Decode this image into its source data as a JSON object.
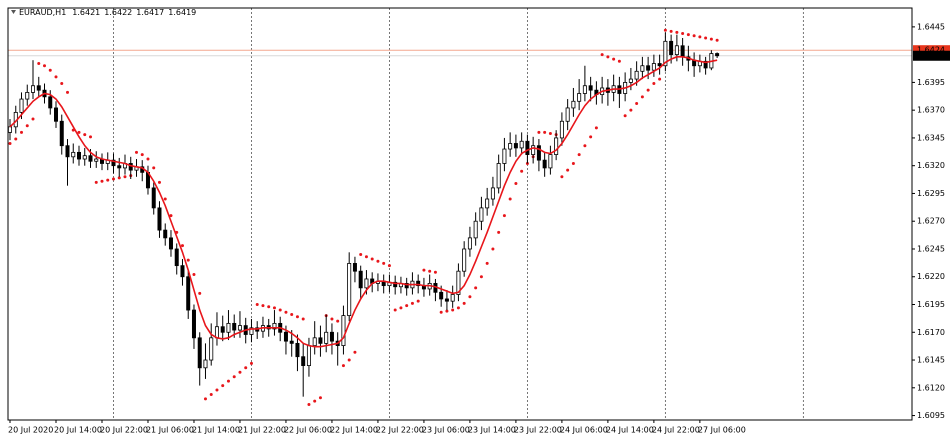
{
  "chart_data": {
    "type": "candlestick",
    "title": "EURAUD,H1",
    "xlim": [
      -0.35,
      156.9
    ],
    "ylim": [
      1.6091,
      1.6462
    ],
    "yticks": [
      1.6445,
      1.6395,
      {
        "value": 1.637,
        "label": "1.6370"
      },
      1.6345,
      {
        "value": 1.632,
        "label": "1.6320"
      },
      1.6295,
      {
        "value": 1.627,
        "label": "1.6270"
      },
      1.6245,
      {
        "value": 1.622,
        "label": "1.6220"
      },
      1.6195,
      {
        "value": 1.617,
        "label": "1.6170"
      },
      1.6145,
      {
        "value": 1.612,
        "label": "1.6120"
      },
      1.6095
    ],
    "xticks": [
      {
        "value": 0,
        "label": "20 Jul 2020"
      },
      {
        "value": 8,
        "label": "20 Jul 14:00"
      },
      {
        "value": 16,
        "label": "20 Jul 22:00"
      },
      {
        "value": 24,
        "label": "21 Jul 06:00"
      },
      {
        "value": 32,
        "label": "21 Jul 14:00"
      },
      {
        "value": 40,
        "label": "21 Jul 22:00"
      },
      {
        "value": 48,
        "label": "22 Jul 06:00"
      },
      {
        "value": 56,
        "label": "22 Jul 14:00"
      },
      {
        "value": 64,
        "label": "22 Jul 22:00"
      },
      {
        "value": 72,
        "label": "23 Jul 06:00"
      },
      {
        "value": 80,
        "label": "23 Jul 14:00"
      },
      {
        "value": 88,
        "label": "23 Jul 22:00"
      },
      {
        "value": 96,
        "label": "24 Jul 06:00"
      },
      {
        "value": 104,
        "label": "24 Jul 14:00"
      },
      {
        "value": 112,
        "label": "24 Jul 22:00"
      },
      {
        "value": 120,
        "label": "27 Jul 06:00"
      }
    ],
    "period_separators": [
      18,
      42,
      66,
      90,
      114,
      138
    ],
    "ask": 1.6424,
    "ask_color": "#e8351c",
    "ask_line_color": "#f4a78f",
    "up_color": "#ffffff",
    "down_color": "#000000",
    "ma_color": "#e8161b",
    "sar_color": "#e8161b",
    "candles": [
      [
        1.635,
        1.6362,
        1.6343,
        1.6355
      ],
      [
        1.6355,
        1.6374,
        1.6349,
        1.6368
      ],
      [
        1.6368,
        1.6386,
        1.6362,
        1.638
      ],
      [
        1.638,
        1.6393,
        1.6374,
        1.6386
      ],
      [
        1.6386,
        1.6415,
        1.638,
        1.6392
      ],
      [
        1.6392,
        1.64,
        1.6382,
        1.6388
      ],
      [
        1.6388,
        1.6394,
        1.6376,
        1.6382
      ],
      [
        1.6382,
        1.6388,
        1.6366,
        1.6372
      ],
      [
        1.6372,
        1.6378,
        1.6354,
        1.636
      ],
      [
        1.636,
        1.6366,
        1.633,
        1.6338
      ],
      [
        1.6338,
        1.6344,
        1.6302,
        1.6328
      ],
      [
        1.6328,
        1.634,
        1.6322,
        1.6332
      ],
      [
        1.6332,
        1.6338,
        1.632,
        1.6326
      ],
      [
        1.6326,
        1.6336,
        1.632,
        1.6329
      ],
      [
        1.6329,
        1.6335,
        1.6318,
        1.6324
      ],
      [
        1.6324,
        1.6333,
        1.6318,
        1.6326
      ],
      [
        1.6326,
        1.6331,
        1.6316,
        1.6322
      ],
      [
        1.6322,
        1.6332,
        1.6316,
        1.6325
      ],
      [
        1.6325,
        1.6331,
        1.6313,
        1.632
      ],
      [
        1.632,
        1.6327,
        1.631,
        1.6318
      ],
      [
        1.6318,
        1.633,
        1.6312,
        1.6322
      ],
      [
        1.6322,
        1.6328,
        1.6308,
        1.6316
      ],
      [
        1.6316,
        1.6326,
        1.631,
        1.6319
      ],
      [
        1.6319,
        1.6325,
        1.6306,
        1.6314
      ],
      [
        1.6314,
        1.632,
        1.6294,
        1.63
      ],
      [
        1.63,
        1.6305,
        1.6276,
        1.6282
      ],
      [
        1.6282,
        1.6288,
        1.6255,
        1.6262
      ],
      [
        1.6262,
        1.6268,
        1.6248,
        1.6255
      ],
      [
        1.6255,
        1.6262,
        1.6238,
        1.6245
      ],
      [
        1.6245,
        1.625,
        1.6222,
        1.623
      ],
      [
        1.623,
        1.6236,
        1.6212,
        1.622
      ],
      [
        1.622,
        1.6225,
        1.6182,
        1.619
      ],
      [
        1.619,
        1.6195,
        1.6155,
        1.6165
      ],
      [
        1.6165,
        1.617,
        1.6122,
        1.6138
      ],
      [
        1.6138,
        1.616,
        1.6128,
        1.6145
      ],
      [
        1.6145,
        1.6178,
        1.614,
        1.6165
      ],
      [
        1.6165,
        1.6188,
        1.6158,
        1.6175
      ],
      [
        1.6175,
        1.6185,
        1.6162,
        1.617
      ],
      [
        1.617,
        1.619,
        1.6163,
        1.6178
      ],
      [
        1.6178,
        1.6186,
        1.6165,
        1.6172
      ],
      [
        1.6172,
        1.6189,
        1.6165,
        1.6176
      ],
      [
        1.6176,
        1.6183,
        1.616,
        1.6168
      ],
      [
        1.6168,
        1.6182,
        1.6161,
        1.6174
      ],
      [
        1.6174,
        1.618,
        1.6164,
        1.6171
      ],
      [
        1.6171,
        1.6184,
        1.6165,
        1.6176
      ],
      [
        1.6176,
        1.6182,
        1.6166,
        1.6173
      ],
      [
        1.6173,
        1.619,
        1.6167,
        1.6178
      ],
      [
        1.6178,
        1.6184,
        1.6162,
        1.617
      ],
      [
        1.617,
        1.6176,
        1.615,
        1.6162
      ],
      [
        1.6162,
        1.6172,
        1.6148,
        1.616
      ],
      [
        1.616,
        1.6168,
        1.6135,
        1.6148
      ],
      [
        1.6148,
        1.616,
        1.6112,
        1.614
      ],
      [
        1.614,
        1.6165,
        1.613,
        1.6158
      ],
      [
        1.6158,
        1.618,
        1.615,
        1.6165
      ],
      [
        1.6165,
        1.6176,
        1.6148,
        1.616
      ],
      [
        1.616,
        1.6186,
        1.6152,
        1.617
      ],
      [
        1.617,
        1.6178,
        1.615,
        1.6162
      ],
      [
        1.6162,
        1.617,
        1.614,
        1.6158
      ],
      [
        1.6158,
        1.6194,
        1.615,
        1.6185
      ],
      [
        1.6185,
        1.6242,
        1.618,
        1.6232
      ],
      [
        1.6232,
        1.6238,
        1.6215,
        1.6225
      ],
      [
        1.6225,
        1.623,
        1.62,
        1.621
      ],
      [
        1.621,
        1.6226,
        1.6204,
        1.6218
      ],
      [
        1.6218,
        1.6224,
        1.6206,
        1.6214
      ],
      [
        1.6214,
        1.6223,
        1.6207,
        1.6216
      ],
      [
        1.6216,
        1.6222,
        1.6205,
        1.6212
      ],
      [
        1.6212,
        1.6222,
        1.6206,
        1.6215
      ],
      [
        1.6215,
        1.6221,
        1.6204,
        1.6211
      ],
      [
        1.6211,
        1.622,
        1.6205,
        1.6214
      ],
      [
        1.6214,
        1.6219,
        1.6203,
        1.621
      ],
      [
        1.621,
        1.6224,
        1.6204,
        1.6216
      ],
      [
        1.6216,
        1.6222,
        1.6205,
        1.6212
      ],
      [
        1.6212,
        1.6219,
        1.6202,
        1.6209
      ],
      [
        1.6209,
        1.6222,
        1.6203,
        1.6214
      ],
      [
        1.6214,
        1.6218,
        1.6198,
        1.6206
      ],
      [
        1.6206,
        1.6212,
        1.6193,
        1.62
      ],
      [
        1.62,
        1.6208,
        1.619,
        1.6198
      ],
      [
        1.6198,
        1.6212,
        1.6192,
        1.6204
      ],
      [
        1.6204,
        1.6232,
        1.6198,
        1.6225
      ],
      [
        1.6225,
        1.6252,
        1.622,
        1.6245
      ],
      [
        1.6245,
        1.6265,
        1.6238,
        1.6255
      ],
      [
        1.6255,
        1.6278,
        1.6248,
        1.627
      ],
      [
        1.627,
        1.6292,
        1.6262,
        1.6282
      ],
      [
        1.6282,
        1.63,
        1.6275,
        1.629
      ],
      [
        1.629,
        1.631,
        1.6284,
        1.63
      ],
      [
        1.63,
        1.633,
        1.6295,
        1.6322
      ],
      [
        1.6322,
        1.6345,
        1.6315,
        1.6335
      ],
      [
        1.6335,
        1.635,
        1.6328,
        1.634
      ],
      [
        1.634,
        1.6348,
        1.6328,
        1.6336
      ],
      [
        1.6336,
        1.635,
        1.633,
        1.6342
      ],
      [
        1.6342,
        1.6348,
        1.6322,
        1.633
      ],
      [
        1.633,
        1.6346,
        1.6322,
        1.6338
      ],
      [
        1.6338,
        1.6344,
        1.6315,
        1.6325
      ],
      [
        1.6325,
        1.6332,
        1.631,
        1.6318
      ],
      [
        1.6318,
        1.6338,
        1.6312,
        1.633
      ],
      [
        1.633,
        1.6352,
        1.6325,
        1.6345
      ],
      [
        1.6345,
        1.6368,
        1.6338,
        1.636
      ],
      [
        1.636,
        1.638,
        1.6352,
        1.6372
      ],
      [
        1.6372,
        1.639,
        1.6364,
        1.6378
      ],
      [
        1.6378,
        1.6398,
        1.637,
        1.6385
      ],
      [
        1.6385,
        1.641,
        1.6378,
        1.6392
      ],
      [
        1.6392,
        1.64,
        1.6378,
        1.6388
      ],
      [
        1.6388,
        1.6396,
        1.6375,
        1.6384
      ],
      [
        1.6384,
        1.64,
        1.6376,
        1.639
      ],
      [
        1.639,
        1.6398,
        1.6374,
        1.6386
      ],
      [
        1.6386,
        1.6402,
        1.6378,
        1.6392
      ],
      [
        1.6392,
        1.64,
        1.6372,
        1.6385
      ],
      [
        1.6385,
        1.6404,
        1.6378,
        1.6395
      ],
      [
        1.6395,
        1.6408,
        1.6388,
        1.6398
      ],
      [
        1.6398,
        1.6414,
        1.6392,
        1.6405
      ],
      [
        1.6405,
        1.6418,
        1.6398,
        1.641
      ],
      [
        1.641,
        1.6418,
        1.6398,
        1.6406
      ],
      [
        1.6406,
        1.642,
        1.64,
        1.6412
      ],
      [
        1.6412,
        1.642,
        1.6402,
        1.641
      ],
      [
        1.641,
        1.644,
        1.6405,
        1.6432
      ],
      [
        1.6432,
        1.6438,
        1.6412,
        1.642
      ],
      [
        1.642,
        1.6438,
        1.6414,
        1.6428
      ],
      [
        1.6428,
        1.6435,
        1.641,
        1.6418
      ],
      [
        1.6418,
        1.6428,
        1.6405,
        1.6415
      ],
      [
        1.6415,
        1.6422,
        1.64,
        1.641
      ],
      [
        1.641,
        1.642,
        1.6404,
        1.6414
      ],
      [
        1.6414,
        1.6418,
        1.6402,
        1.6408
      ],
      [
        1.6408,
        1.6424,
        1.6406,
        1.6421
      ],
      [
        1.6421,
        1.6422,
        1.6417,
        1.6419
      ]
    ],
    "ma_values": [
      1.6355,
      1.636,
      1.6366,
      1.6372,
      1.6378,
      1.6382,
      1.6385,
      1.6384,
      1.638,
      1.6373,
      1.6364,
      1.6355,
      1.6346,
      1.6338,
      1.6332,
      1.6328,
      1.6326,
      1.6325,
      1.6324,
      1.6323,
      1.6322,
      1.632,
      1.6319,
      1.6318,
      1.6314,
      1.6306,
      1.6296,
      1.6284,
      1.627,
      1.6256,
      1.6242,
      1.6226,
      1.6208,
      1.619,
      1.6176,
      1.6168,
      1.6165,
      1.6164,
      1.6165,
      1.6168,
      1.617,
      1.6172,
      1.6173,
      1.6173,
      1.6174,
      1.6174,
      1.6174,
      1.6174,
      1.6172,
      1.6169,
      1.6165,
      1.616,
      1.6158,
      1.6157,
      1.6157,
      1.6158,
      1.6159,
      1.616,
      1.6165,
      1.6178,
      1.619,
      1.62,
      1.6208,
      1.6214,
      1.6216,
      1.6216,
      1.6215,
      1.6214,
      1.6214,
      1.6213,
      1.6213,
      1.6213,
      1.6212,
      1.6212,
      1.6211,
      1.6209,
      1.6207,
      1.6205,
      1.6206,
      1.6212,
      1.6222,
      1.6234,
      1.6247,
      1.626,
      1.6274,
      1.6288,
      1.6302,
      1.6314,
      1.6324,
      1.6331,
      1.6334,
      1.6336,
      1.6335,
      1.6332,
      1.6331,
      1.6334,
      1.634,
      1.6348,
      1.6357,
      1.6366,
      1.6374,
      1.638,
      1.6384,
      1.6387,
      1.6388,
      1.6389,
      1.6389,
      1.639,
      1.6392,
      1.6395,
      1.6399,
      1.6402,
      1.6405,
      1.6408,
      1.6413,
      1.6416,
      1.6418,
      1.6418,
      1.6417,
      1.6415,
      1.6414,
      1.6413,
      1.6414,
      1.6415
    ],
    "sar_values": [
      1.634,
      1.6344,
      1.635,
      1.6356,
      1.6362,
      1.6412,
      1.641,
      1.6406,
      1.64,
      1.6394,
      1.6386,
      1.6352,
      1.635,
      1.6348,
      1.6346,
      1.6305,
      1.6306,
      1.6307,
      1.6308,
      1.6309,
      1.631,
      1.6311,
      1.6332,
      1.633,
      1.6326,
      1.6318,
      1.6305,
      1.629,
      1.6275,
      1.626,
      1.6248,
      1.6235,
      1.6222,
      1.6205,
      1.611,
      1.6114,
      1.6118,
      1.6122,
      1.6126,
      1.613,
      1.6134,
      1.6138,
      1.6142,
      1.6195,
      1.6194,
      1.6193,
      1.6192,
      1.619,
      1.6188,
      1.6186,
      1.6184,
      1.6182,
      1.6105,
      1.6108,
      1.6111,
      1.6185,
      1.6182,
      1.618,
      1.614,
      1.6145,
      1.6152,
      1.624,
      1.6238,
      1.6236,
      1.6234,
      1.6232,
      1.623,
      1.619,
      1.6192,
      1.6194,
      1.6196,
      1.6198,
      1.6226,
      1.6225,
      1.6224,
      1.6188,
      1.6189,
      1.619,
      1.6192,
      1.6196,
      1.6202,
      1.621,
      1.622,
      1.6232,
      1.6245,
      1.626,
      1.6275,
      1.629,
      1.6304,
      1.6315,
      1.6322,
      1.6328,
      1.635,
      1.635,
      1.6349,
      1.6348,
      1.631,
      1.6316,
      1.6322,
      1.633,
      1.6338,
      1.6346,
      1.6354,
      1.642,
      1.6418,
      1.6416,
      1.6414,
      1.6365,
      1.637,
      1.6376,
      1.6382,
      1.6388,
      1.6394,
      1.6398,
      1.6442,
      1.6441,
      1.644,
      1.6439,
      1.6438,
      1.6437,
      1.6436,
      1.6435,
      1.6434,
      1.6433
    ]
  }
}
